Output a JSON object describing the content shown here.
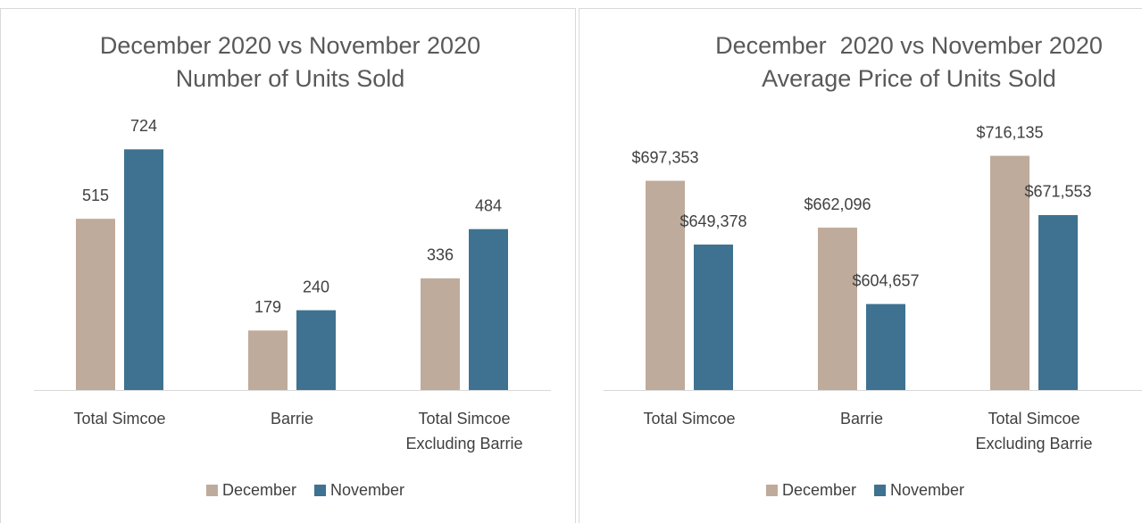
{
  "chart_data": [
    {
      "type": "bar",
      "title": "December 2020 vs November 2020",
      "subtitle": "Number of Units Sold",
      "categories": [
        "Total Simcoe",
        "Barrie",
        "Total Simcoe Excluding Barrie"
      ],
      "series": [
        {
          "name": "December",
          "color": "#bfab9b",
          "values": [
            515,
            179,
            336
          ]
        },
        {
          "name": "November",
          "color": "#3e7290",
          "values": [
            724,
            240,
            484
          ]
        }
      ],
      "ylim": [
        0,
        800
      ],
      "legend": "bottom"
    },
    {
      "type": "bar",
      "title": "December  2020 vs November 2020",
      "subtitle": "Average Price of Units Sold",
      "categories": [
        "Total Simcoe",
        "Barrie",
        "Total Simcoe Excluding Barrie"
      ],
      "series": [
        {
          "name": "December",
          "color": "#bfab9b",
          "values": [
            697353,
            662096,
            716135
          ],
          "value_labels": [
            "$697,353",
            "$662,096",
            "$716,135"
          ]
        },
        {
          "name": "November",
          "color": "#3e7290",
          "values": [
            649378,
            604657,
            671553
          ],
          "value_labels": [
            "$649,378",
            "$604,657",
            "$671,553"
          ]
        }
      ],
      "ylim": [
        540000,
        740000
      ],
      "legend": "bottom"
    }
  ]
}
